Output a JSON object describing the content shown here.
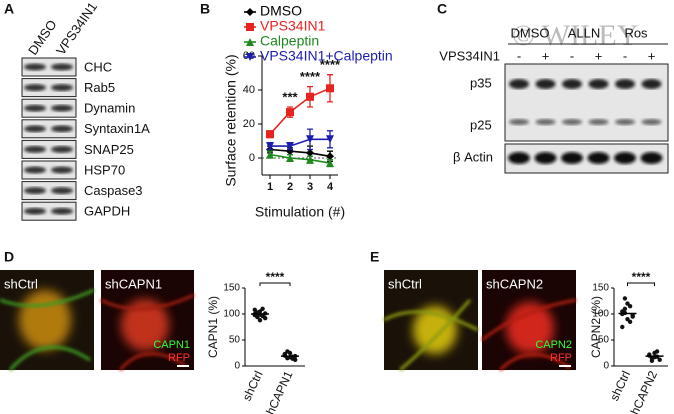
{
  "panel_labels": [
    "A",
    "B",
    "C",
    "D",
    "E"
  ],
  "blot_a": {
    "columns": [
      "DMSO",
      "VPS34IN1"
    ],
    "rows": [
      "CHC",
      "Rab5",
      "Dynamin",
      "Syntaxin1A",
      "SNAP25",
      "HSP70",
      "Caspase3",
      "GAPDH"
    ]
  },
  "blot_c": {
    "watermark": "© WILEY",
    "treatments": [
      "DMSO",
      "ALLN",
      "Ros"
    ],
    "condition": "VPS34IN1",
    "signs": [
      "-",
      "+",
      "-",
      "+",
      "-",
      "+"
    ],
    "bands": [
      "p35",
      "p25"
    ],
    "loading": "β Actin"
  },
  "images_d": {
    "panels": [
      "shCtrl",
      "shCAPN1"
    ],
    "stains": [
      "CAPN1",
      "RFP"
    ]
  },
  "images_e": {
    "panels": [
      "shCtrl",
      "shCAPN2"
    ],
    "stains": [
      "CAPN2",
      "RFP"
    ]
  },
  "chart_data": [
    {
      "type": "line",
      "x_label": "Stimulation (#)",
      "y_label": "Surface retention (%)",
      "x": [
        1,
        2,
        3,
        4
      ],
      "xlim": [
        0.6,
        4.4
      ],
      "xticks": [
        1,
        2,
        3,
        4
      ],
      "ylim": [
        -10,
        60
      ],
      "yticks": [
        0,
        20,
        40,
        60
      ],
      "series": [
        {
          "name": "DMSO",
          "color": "#000000",
          "marker": "diamond",
          "values": [
            5,
            4,
            3,
            1
          ],
          "errors": [
            2,
            2,
            4,
            3
          ]
        },
        {
          "name": "VPS34IN1",
          "color": "#e8231f",
          "marker": "square",
          "values": [
            14,
            27,
            36,
            41
          ],
          "errors": [
            2,
            3,
            6,
            8
          ]
        },
        {
          "name": "Calpeptin",
          "color": "#1e8a1e",
          "marker": "triangle",
          "values": [
            2,
            0,
            -1,
            -3
          ],
          "errors": [
            2,
            2,
            2,
            2
          ]
        },
        {
          "name": "VPS34IN1+Calpeptin",
          "color": "#1c1cb0",
          "marker": "triangle-down",
          "values": [
            7,
            7,
            11,
            11
          ],
          "errors": [
            2,
            2,
            6,
            5
          ]
        }
      ],
      "annotations": [
        {
          "x": 2,
          "text": "***"
        },
        {
          "x": 3,
          "text": "****"
        },
        {
          "x": 4,
          "text": "****"
        }
      ]
    },
    {
      "type": "strip",
      "y_label": "CAPN1 (%)",
      "categories": [
        "shCtrl",
        "shCAPN1"
      ],
      "ylim": [
        0,
        150
      ],
      "yticks": [
        0,
        50,
        100,
        150
      ],
      "values": [
        [
          100,
          95,
          105,
          110,
          92,
          98,
          103,
          88,
          97,
          101,
          108,
          94,
          99,
          96
        ],
        [
          20,
          15,
          25,
          18,
          12,
          22,
          28,
          17,
          14,
          19,
          23,
          16
        ]
      ],
      "means": [
        100,
        19
      ],
      "annotation": "****"
    },
    {
      "type": "strip",
      "y_label": "CAPN2 (%)",
      "categories": [
        "shCtrl",
        "shCAPN2"
      ],
      "ylim": [
        0,
        150
      ],
      "yticks": [
        0,
        50,
        100,
        150
      ],
      "values": [
        [
          100,
          110,
          120,
          85,
          95,
          105,
          130,
          90,
          115,
          98,
          75,
          102
        ],
        [
          20,
          15,
          25,
          18,
          12,
          22,
          10,
          17,
          28
        ]
      ],
      "means": [
        101,
        19
      ],
      "annotation": "****"
    }
  ]
}
